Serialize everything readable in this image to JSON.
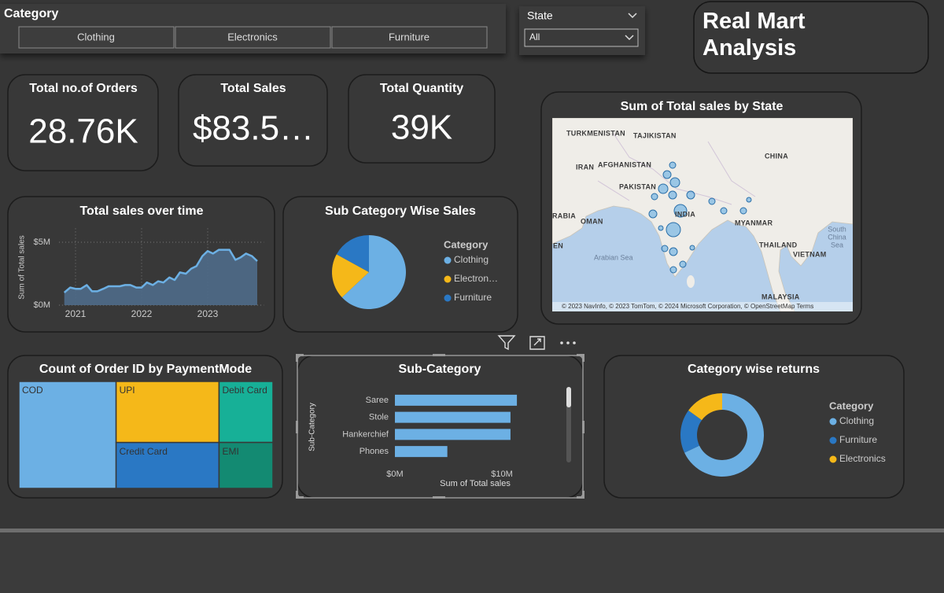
{
  "slicers": {
    "category": {
      "title": "Category",
      "options": [
        "Clothing",
        "Electronics",
        "Furniture"
      ]
    },
    "state": {
      "title": "State",
      "value": "All"
    }
  },
  "header": {
    "title": "Real Mart Analysis"
  },
  "cards": [
    {
      "label": "Total no.of Orders",
      "value": "28.76K"
    },
    {
      "label": "Total Sales",
      "value": "$83.5…"
    },
    {
      "label": "Total Quantity",
      "value": "39K"
    }
  ],
  "map": {
    "title": "Sum of Total sales by State",
    "labels": [
      "TURKMENISTAN",
      "TAJIKISTAN",
      "IRAN",
      "AFGHANISTAN",
      "PAKISTAN",
      "CHINA",
      "RABIA",
      "OMAN",
      "INDIA",
      "MYANMAR",
      "EN",
      "THAILAND",
      "VIETNAM",
      "South",
      "China",
      "Sea",
      "Arabian Sea",
      "MALAYSIA"
    ],
    "attribution": "© 2023 NavInfo, © 2023 TomTom, © 2024 Microsoft Corporation, © OpenStreetMap  Terms"
  },
  "chart_data": [
    {
      "type": "line",
      "title": "Total sales over time",
      "y_label": "Sum of Total sales",
      "x": [
        2020.83,
        2020.92,
        2021.0,
        2021.08,
        2021.17,
        2021.25,
        2021.33,
        2021.42,
        2021.5,
        2021.58,
        2021.67,
        2021.75,
        2021.83,
        2021.92,
        2022.0,
        2022.08,
        2022.17,
        2022.25,
        2022.33,
        2022.42,
        2022.5,
        2022.58,
        2022.67,
        2022.75,
        2022.83,
        2022.92,
        2023.0,
        2023.08,
        2023.17,
        2023.25,
        2023.33,
        2023.42,
        2023.5,
        2023.58,
        2023.67,
        2023.75
      ],
      "values": [
        1.0,
        1.4,
        1.3,
        1.3,
        1.6,
        1.1,
        1.1,
        1.3,
        1.5,
        1.5,
        1.5,
        1.6,
        1.6,
        1.4,
        1.4,
        1.8,
        1.6,
        1.9,
        1.8,
        2.2,
        2.0,
        2.6,
        2.5,
        2.9,
        3.1,
        3.9,
        4.3,
        4.1,
        4.4,
        4.4,
        4.4,
        3.6,
        3.8,
        4.1,
        3.9,
        3.5
      ],
      "color": "#6cb0e4",
      "area": true,
      "xlim": [
        2020.75,
        2023.85
      ],
      "xticks": [
        2021,
        2022,
        2023
      ],
      "ylim": [
        0,
        6.1
      ],
      "yticks": [
        {
          "value": 0,
          "label": "$0M"
        },
        {
          "value": 5,
          "label": "$5M"
        }
      ],
      "grid": true
    },
    {
      "type": "pie",
      "title": "Sub Category Wise Sales",
      "legend_title": "Category",
      "categories": [
        "Clothing",
        "Electron…",
        "Furniture"
      ],
      "values": [
        63,
        20,
        17
      ],
      "colors": [
        "#6cb0e4",
        "#f5b819",
        "#2a78c4"
      ],
      "legend": "right"
    },
    {
      "type": "treemap",
      "title": "Count of Order ID by PaymentMode",
      "categories": [
        "COD",
        "UPI",
        "Debit Card",
        "Credit Card",
        "EMI"
      ],
      "values": [
        11000,
        6650,
        3480,
        5000,
        2620
      ],
      "colors": [
        "#6cb0e4",
        "#f5b819",
        "#17b097",
        "#2a78c4",
        "#138a72"
      ]
    },
    {
      "type": "hbar",
      "title": "Sub-Category",
      "x_label": "Sum of Total sales",
      "y_label": "Sub-Category",
      "categories": [
        "Saree",
        "Stole",
        "Hankerchief",
        "Phones"
      ],
      "values": [
        11.4,
        10.8,
        10.8,
        4.9
      ],
      "color": "#6cb0e4",
      "xlim": [
        0,
        11.6
      ],
      "xticks": [
        {
          "value": 0,
          "label": "$0M"
        },
        {
          "value": 10,
          "label": "$10M"
        }
      ],
      "grid": false
    },
    {
      "type": "donut",
      "title": "Category wise returns",
      "legend_title": "Category",
      "categories": [
        "Clothing",
        "Furniture",
        "Electronics"
      ],
      "values": [
        68,
        17,
        15
      ],
      "colors": [
        "#6cb0e4",
        "#2a78c4",
        "#f5b819"
      ],
      "legend": "right"
    }
  ]
}
